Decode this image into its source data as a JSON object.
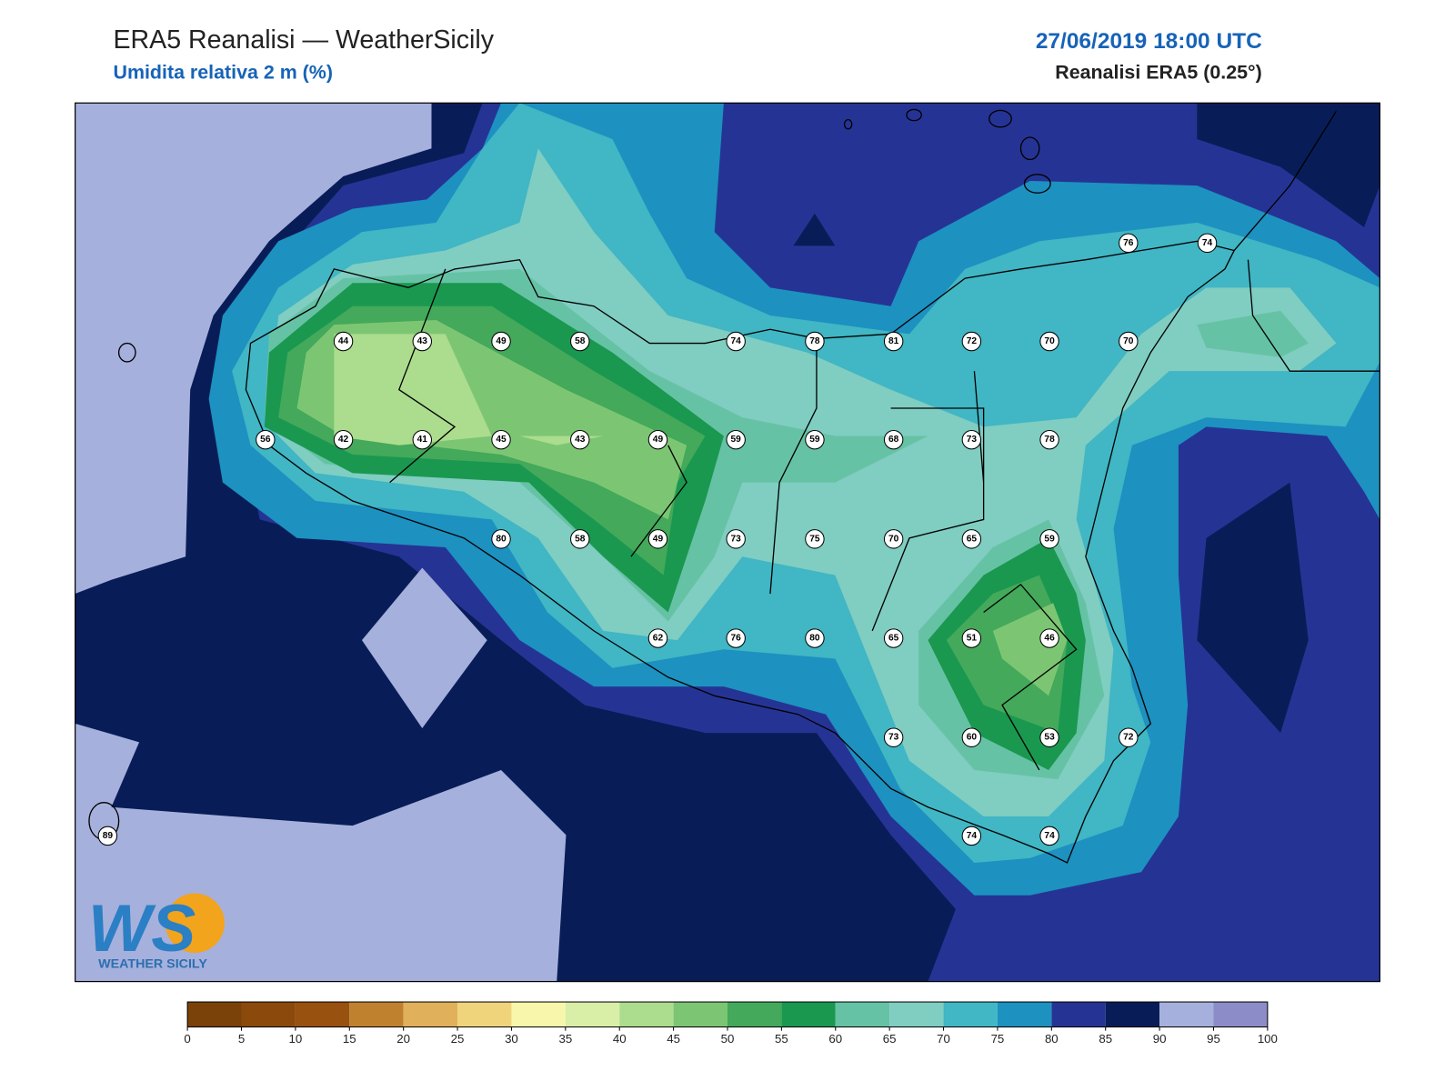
{
  "header": {
    "title": "ERA5 Reanalisi — WeatherSicily",
    "subtitle": "Umidita relativa 2 m (%)",
    "datetime": "27/06/2019 18:00 UTC",
    "source": "Reanalisi ERA5 (0.25°)"
  },
  "stations": [
    44,
    43,
    49,
    58,
    74,
    78,
    81,
    72,
    70,
    70,
    76,
    74,
    56,
    42,
    41,
    45,
    43,
    49,
    59,
    59,
    68,
    73,
    78,
    80,
    58,
    49,
    73,
    75,
    70,
    65,
    59,
    62,
    76,
    80,
    65,
    51,
    46,
    73,
    60,
    53,
    72,
    89,
    74,
    74
  ],
  "colorbar": {
    "ticks": [
      0,
      5,
      10,
      15,
      20,
      25,
      30,
      35,
      40,
      45,
      50,
      55,
      60,
      65,
      70,
      75,
      80,
      85,
      90,
      95,
      100
    ],
    "colors": [
      "#7a4208",
      "#8b490c",
      "#98510f",
      "#c0812f",
      "#e0b05a",
      "#f0d47c",
      "#f7f6ab",
      "#d9eea6",
      "#acdc8e",
      "#7cc673",
      "#44a95a",
      "#1a9850",
      "#66c2a4",
      "#80cdc1",
      "#41b6c4",
      "#1d91c0",
      "#253494",
      "#081d58",
      "#a6b0dc",
      "#8c8cc8"
    ]
  },
  "logo": {
    "mark": "WS",
    "text": "WEATHER SICILY"
  }
}
